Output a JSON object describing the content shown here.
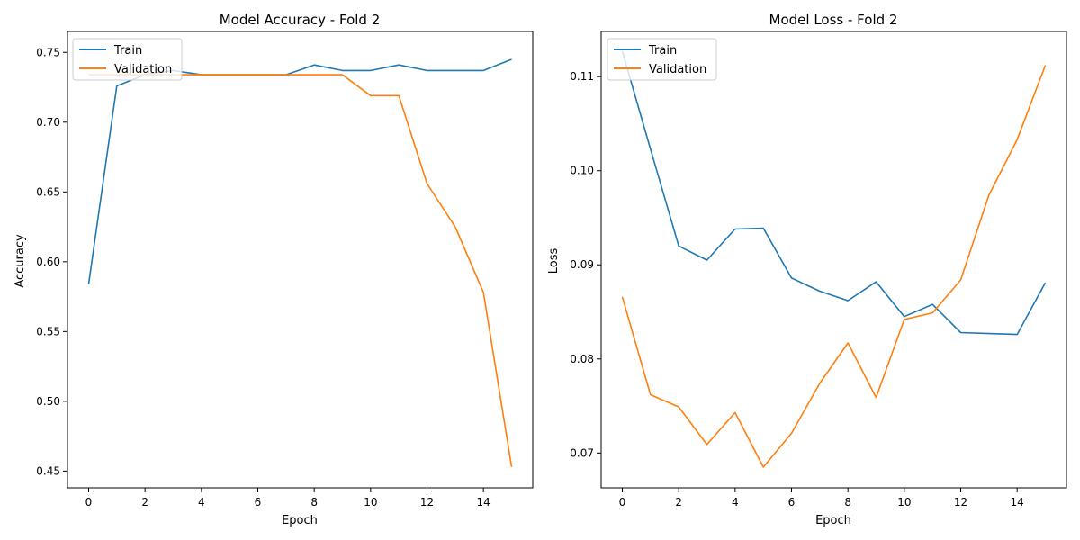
{
  "chart_data": [
    {
      "type": "line",
      "title": "Model Accuracy - Fold 2",
      "xlabel": "Epoch",
      "ylabel": "Accuracy",
      "xlim": [
        -0.75,
        15.75
      ],
      "ylim": [
        0.438,
        0.765
      ],
      "xticks": [
        0,
        2,
        4,
        6,
        8,
        10,
        12,
        14
      ],
      "yticks": [
        0.45,
        0.5,
        0.55,
        0.6,
        0.65,
        0.7,
        0.75
      ],
      "grid": false,
      "legend_position": "top-left",
      "x": [
        0,
        1,
        2,
        3,
        4,
        5,
        6,
        7,
        8,
        9,
        10,
        11,
        12,
        13,
        14,
        15
      ],
      "series": [
        {
          "name": "Train",
          "color": "#1f77b4",
          "values": [
            0.584,
            0.726,
            0.734,
            0.737,
            0.734,
            0.734,
            0.734,
            0.734,
            0.741,
            0.737,
            0.737,
            0.741,
            0.737,
            0.737,
            0.737,
            0.745
          ]
        },
        {
          "name": "Validation",
          "color": "#ff7f0e",
          "values": [
            0.734,
            0.734,
            0.734,
            0.734,
            0.734,
            0.734,
            0.734,
            0.734,
            0.734,
            0.734,
            0.719,
            0.719,
            0.656,
            0.625,
            0.578,
            0.453
          ]
        }
      ]
    },
    {
      "type": "line",
      "title": "Model Loss - Fold 2",
      "xlabel": "Epoch",
      "ylabel": "Loss",
      "xlim": [
        -0.75,
        15.75
      ],
      "ylim": [
        0.0663,
        0.1148
      ],
      "xticks": [
        0,
        2,
        4,
        6,
        8,
        10,
        12,
        14
      ],
      "yticks": [
        0.07,
        0.08,
        0.09,
        0.1,
        0.11
      ],
      "grid": false,
      "legend_position": "top-left",
      "x": [
        0,
        1,
        2,
        3,
        4,
        5,
        6,
        7,
        8,
        9,
        10,
        11,
        12,
        13,
        14,
        15
      ],
      "series": [
        {
          "name": "Train",
          "color": "#1f77b4",
          "values": [
            0.1127,
            0.1023,
            0.092,
            0.0905,
            0.0938,
            0.0939,
            0.0886,
            0.0872,
            0.0862,
            0.0882,
            0.0845,
            0.0858,
            0.0828,
            0.0827,
            0.0826,
            0.0881
          ]
        },
        {
          "name": "Validation",
          "color": "#ff7f0e",
          "values": [
            0.0866,
            0.0762,
            0.0749,
            0.0709,
            0.0743,
            0.0685,
            0.0721,
            0.0774,
            0.0817,
            0.0759,
            0.0842,
            0.0849,
            0.0884,
            0.0974,
            0.1033,
            0.1112
          ]
        }
      ]
    }
  ]
}
